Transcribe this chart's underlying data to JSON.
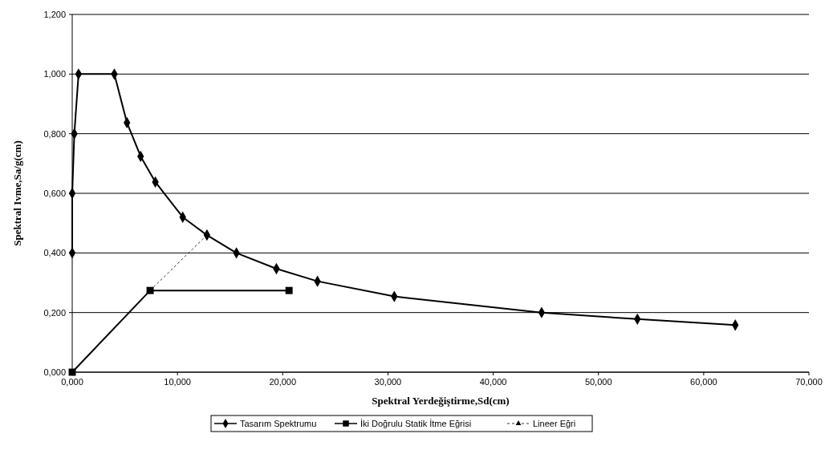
{
  "chart_data": {
    "type": "line",
    "xlabel": "Spektral Yerdeğiştirme,Sd(cm)",
    "ylabel": "Spektral Ivme,Sa/g(cm)",
    "xlim": [
      0,
      70
    ],
    "ylim": [
      0,
      1.2
    ],
    "xticks": [
      {
        "value": 0,
        "label": "0,000"
      },
      {
        "value": 10,
        "label": "10,000"
      },
      {
        "value": 20,
        "label": "20,000"
      },
      {
        "value": 30,
        "label": "30,000"
      },
      {
        "value": 40,
        "label": "40,000"
      },
      {
        "value": 50,
        "label": "50,000"
      },
      {
        "value": 60,
        "label": "60,000"
      },
      {
        "value": 70,
        "label": "70,000"
      }
    ],
    "yticks": [
      {
        "value": 0,
        "label": "0,000"
      },
      {
        "value": 0.2,
        "label": "0,200"
      },
      {
        "value": 0.4,
        "label": "0,400"
      },
      {
        "value": 0.6,
        "label": "0,600"
      },
      {
        "value": 0.8,
        "label": "0,800"
      },
      {
        "value": 1,
        "label": "1,000"
      },
      {
        "value": 1.2,
        "label": "1,200"
      }
    ],
    "grid": "y",
    "legend": "bottom",
    "series": [
      {
        "name": "Tasarım Spektrumu",
        "color": "#000000",
        "marker": "diamond",
        "line_style": "solid",
        "x": [
          0,
          0,
          0.2,
          0.6,
          4,
          5.2,
          6.5,
          7.9,
          10.5,
          12.8,
          15.6,
          19.4,
          23.3,
          30.6,
          44.6,
          53.7,
          63
        ],
        "values": [
          0.4,
          0.6,
          0.8,
          1,
          1,
          0.837,
          0.724,
          0.638,
          0.52,
          0.46,
          0.4,
          0.347,
          0.305,
          0.254,
          0.2,
          0.178,
          0.158
        ]
      },
      {
        "name": "İki Doğrulu Statik İtme Eğrisi",
        "color": "#000000",
        "marker": "square",
        "line_style": "solid",
        "x": [
          0,
          7.4,
          20.6
        ],
        "values": [
          0,
          0.274,
          0.274
        ]
      },
      {
        "name": "Lineer Eğri",
        "color": "#000000",
        "marker": "triangle",
        "line_style": "dashed",
        "x": [
          7.4,
          12.8
        ],
        "values": [
          0.274,
          0.46
        ]
      }
    ]
  }
}
